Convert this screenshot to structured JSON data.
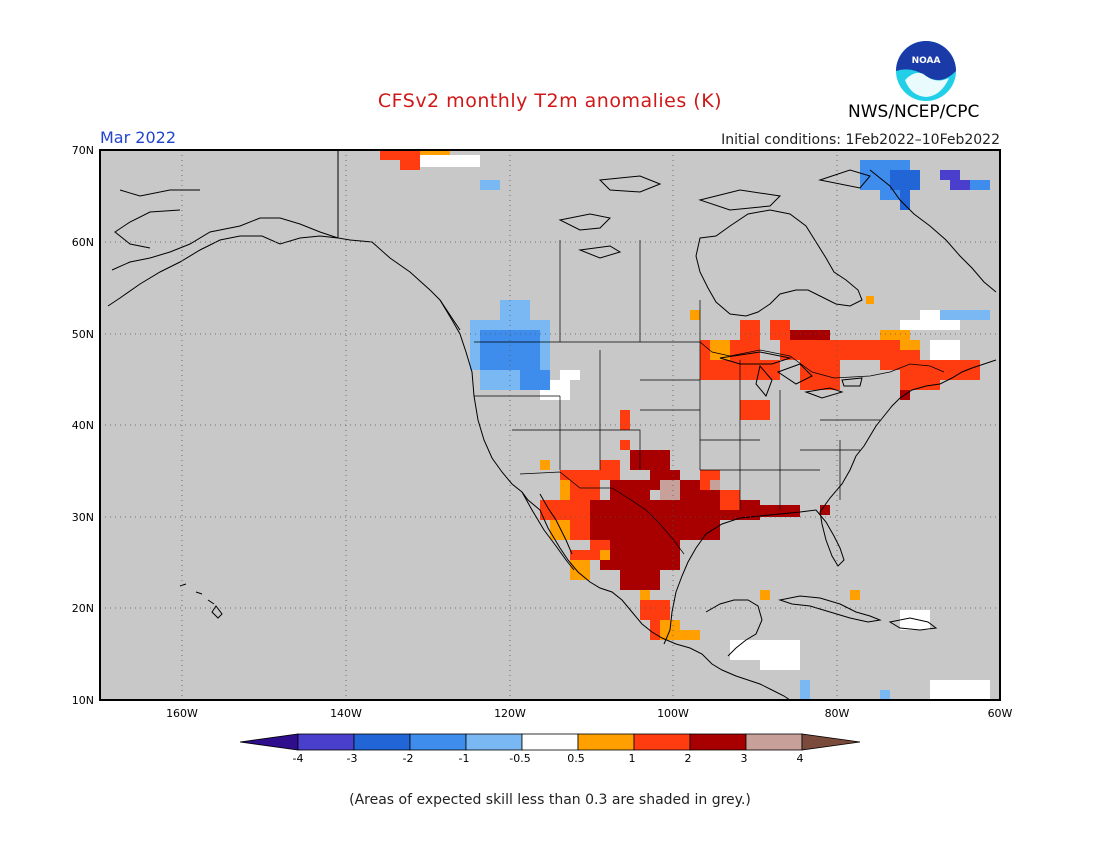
{
  "title": "CFSv2 monthly T2m anomalies (K)",
  "valid_month": "Mar 2022",
  "initial_conditions": "Initial conditions: 1Feb2022–10Feb2022",
  "agency": "NWS/NCEP/CPC",
  "logo_text": "NOAA",
  "footnote": "(Areas of expected skill less than 0.3 are shaded in grey.)",
  "map": {
    "lon_labels": [
      "160W",
      "140W",
      "120W",
      "100W",
      "80W",
      "60W"
    ],
    "lat_labels": [
      "10N",
      "20N",
      "30N",
      "40N",
      "50N",
      "60N",
      "70N"
    ],
    "lon_range": [
      -170,
      -60
    ],
    "lat_range": [
      10,
      70
    ],
    "background_color": "#c8c8c8"
  },
  "colorbar": {
    "labels": [
      "-4",
      "-3",
      "-2",
      "-1",
      "-0.5",
      "0.5",
      "1",
      "2",
      "3",
      "4"
    ],
    "colors": [
      "#2e0e8c",
      "#4a3ecc",
      "#2265d6",
      "#3e8cec",
      "#7ab8f4",
      "#ffffff",
      "#ff9f00",
      "#ff3c10",
      "#a80000",
      "#c8a09a",
      "#7a4a3a"
    ]
  },
  "chart_data": {
    "type": "heatmap",
    "title": "CFSv2 monthly T2m anomalies (K)",
    "units": "K",
    "valid": "Mar 2022",
    "levels": [
      -4,
      -3,
      -2,
      -1,
      -0.5,
      0.5,
      1,
      2,
      3,
      4
    ],
    "regions": [
      {
        "name": "Texas / northern Mexico / Gulf Coast",
        "anomaly_range": [
          2,
          3
        ],
        "lon": [
          -107,
          -89
        ],
        "lat": [
          22,
          33
        ]
      },
      {
        "name": "Southern Plains",
        "anomaly_range": [
          2,
          3
        ],
        "lon": [
          -105,
          -97
        ],
        "lat": [
          34,
          37
        ]
      },
      {
        "name": "Arizona / New Mexico",
        "anomaly_range": [
          1,
          2
        ],
        "lon": [
          -112,
          -104
        ],
        "lat": [
          30,
          34
        ]
      },
      {
        "name": "Great Lakes / Upper Midwest",
        "anomaly_range": [
          1,
          2
        ],
        "lon": [
          -97,
          -77
        ],
        "lat": [
          42,
          48
        ]
      },
      {
        "name": "Quebec / New England",
        "anomaly_range": [
          1,
          3
        ],
        "lon": [
          -80,
          -63
        ],
        "lat": [
          43,
          49
        ]
      },
      {
        "name": "Pacific Northwest / British Columbia",
        "anomaly_range": [
          -2,
          -1
        ],
        "lon": [
          -127,
          -116
        ],
        "lat": [
          44,
          52
        ]
      },
      {
        "name": "Northern Quebec / Labrador",
        "anomaly_range": [
          -3,
          -1
        ],
        "lon": [
          -76,
          -65
        ],
        "lat": [
          65,
          70
        ]
      },
      {
        "name": "Central Mexico / Pacific coast",
        "anomaly_range": [
          0.5,
          2
        ],
        "lon": [
          -106,
          -97
        ],
        "lat": [
          16,
          21
        ]
      },
      {
        "name": "Central America",
        "anomaly_range": [
          -0.5,
          0.5
        ],
        "lon": [
          -92,
          -82
        ],
        "lat": [
          12,
          16
        ]
      }
    ],
    "grey_meaning": "expected skill less than 0.3"
  }
}
